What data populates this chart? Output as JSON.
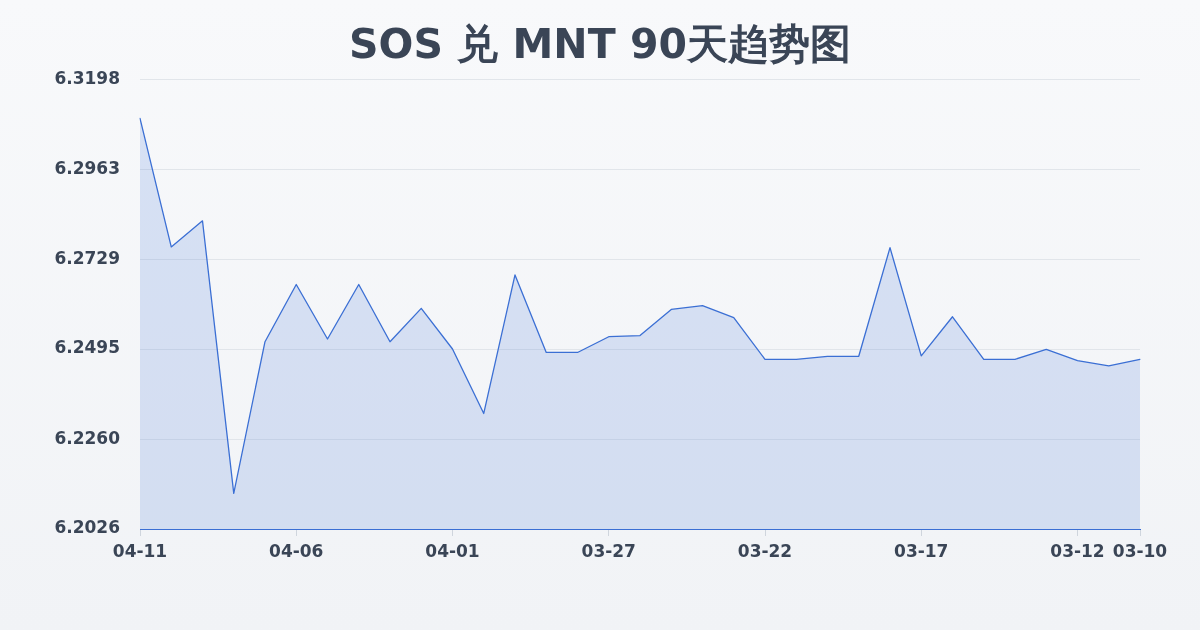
{
  "chart_data": {
    "type": "area",
    "title": "SOS 兑 MNT 90天趋势图",
    "categories": [
      "04-11",
      null,
      null,
      null,
      null,
      "04-06",
      null,
      null,
      null,
      null,
      "04-01",
      null,
      null,
      null,
      null,
      "03-27",
      null,
      null,
      null,
      null,
      "03-22",
      null,
      null,
      null,
      null,
      "03-17",
      null,
      null,
      null,
      null,
      "03-12",
      null,
      "03-10"
    ],
    "series": [
      {
        "color": "#3b6fd4",
        "values": [
          6.3096,
          6.2761,
          6.2829,
          6.2119,
          6.2514,
          6.2663,
          6.2521,
          6.2663,
          6.2514,
          6.2601,
          6.2495,
          6.2327,
          6.2688,
          6.2486,
          6.2486,
          6.2527,
          6.253,
          6.2598,
          6.2608,
          6.2577,
          6.2468,
          6.2468,
          6.2476,
          6.2476,
          6.2759,
          6.2477,
          6.2579,
          6.2468,
          6.2468,
          6.2494,
          6.2465,
          6.2451,
          6.2468
        ]
      }
    ],
    "ylim": [
      6.2026,
      6.3198
    ],
    "yticks": [
      6.2026,
      {
        "value": 6.226,
        "label": "6.2260"
      },
      6.2495,
      6.2729,
      6.2963,
      6.3198
    ],
    "grid": "y",
    "legend": false
  }
}
